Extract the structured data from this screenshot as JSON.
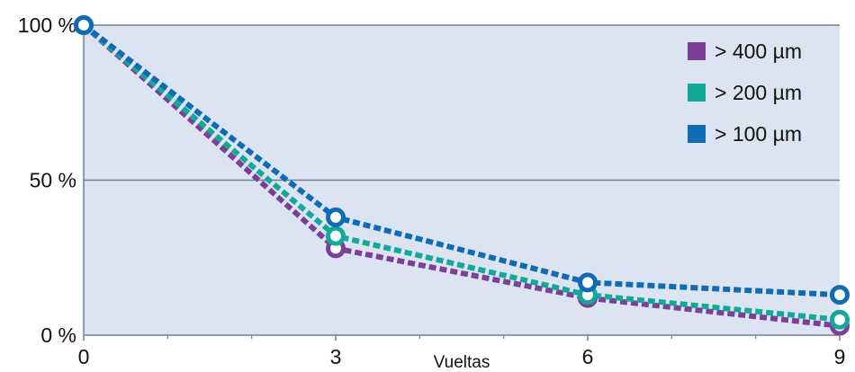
{
  "chart_data": {
    "type": "line",
    "x": [
      0,
      3,
      6,
      9
    ],
    "xticks": [
      "0",
      "3",
      "6",
      "9"
    ],
    "xlabel": "Vueltas",
    "ylabel": "",
    "xlim": [
      0,
      9
    ],
    "ylim": [
      0,
      100
    ],
    "yticks": [
      {
        "value": 0,
        "label": "0 %"
      },
      {
        "value": 50,
        "label": "50 %"
      },
      {
        "value": 100,
        "label": "100 %"
      }
    ],
    "grid": true,
    "legend_position": "top-right",
    "plot_background": "#dde4f1",
    "series": [
      {
        "name": "> 400 µm",
        "color": "#7b3f98",
        "values": [
          100,
          28,
          12,
          3
        ]
      },
      {
        "name": "> 200 µm",
        "color": "#13a99a",
        "values": [
          100,
          32,
          13,
          5
        ]
      },
      {
        "name": "> 100 µm",
        "color": "#0f6cb4",
        "values": [
          100,
          38,
          17,
          13
        ]
      }
    ]
  }
}
